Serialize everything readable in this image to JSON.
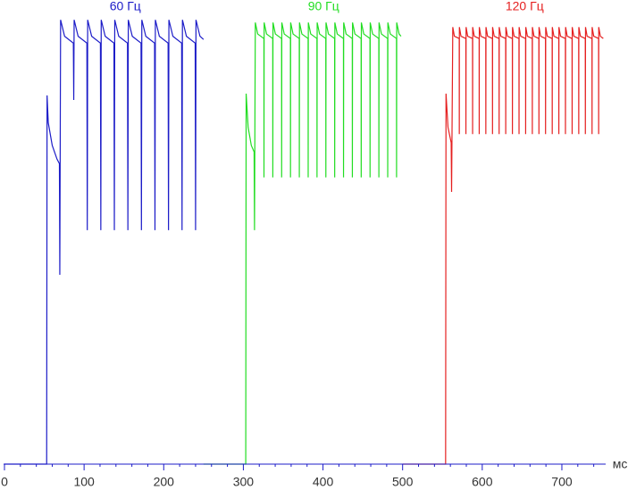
{
  "chart_data": {
    "type": "line",
    "xlabel": "мс",
    "xlim": [
      0,
      755
    ],
    "ylim": [
      0,
      100
    ],
    "xticks": [
      0,
      100,
      200,
      300,
      400,
      500,
      600,
      700
    ],
    "xticks_minor": [
      20,
      40,
      60,
      80,
      120,
      140,
      160,
      180,
      220,
      240,
      260,
      280,
      320,
      340,
      360,
      380,
      420,
      440,
      460,
      480,
      520,
      540,
      560,
      580,
      620,
      640,
      660,
      680,
      720,
      740
    ],
    "series": [
      {
        "name": "60 Гц",
        "color": "#1c1cc8",
        "x": [
          0,
          53,
          53.5,
          55,
          60,
          66,
          69,
          69.5,
          70.5,
          75.5,
          86.5,
          87,
          87.5,
          92.5,
          103.5,
          104,
          104.5,
          109.5,
          120.5,
          121,
          121.5,
          126.5,
          137.5,
          138,
          138.5,
          143.5,
          154.5,
          155,
          155.5,
          160.5,
          171.5,
          172,
          172.5,
          177.5,
          188.5,
          189,
          189.5,
          194.5,
          205.5,
          206,
          206.5,
          211.5,
          222.5,
          223,
          223.5,
          228.5,
          239.5,
          240,
          240.5,
          245.5,
          250
        ],
        "values": [
          0,
          0,
          81,
          75,
          70,
          67,
          66,
          41.6,
          97.6,
          94,
          92.5,
          80,
          97.6,
          94,
          92.5,
          51.4,
          97.6,
          94,
          92.5,
          51.4,
          97.6,
          94,
          92.5,
          51.4,
          97.6,
          94,
          92.5,
          51.4,
          97.6,
          94,
          92.5,
          51.4,
          97.6,
          94,
          92.5,
          51.4,
          97.6,
          94,
          92.5,
          51.4,
          97.6,
          94,
          92.5,
          51.4,
          97.6,
          94,
          92.5,
          51.4,
          97.6,
          94,
          93.3
        ]
      },
      {
        "name": "90 Гц",
        "color": "#22dd22",
        "x": [
          250,
          303,
          303.5,
          306,
          310,
          313.5,
          314,
          315,
          318,
          325.8,
          325.9,
          326.1,
          329.1,
          336.9,
          337,
          337.2,
          340.2,
          348,
          348.1,
          348.3,
          351.3,
          359.1,
          359.2,
          359.4,
          362.4,
          370.2,
          370.3,
          370.5,
          373.5,
          381.3,
          381.4,
          381.6,
          384.6,
          392.4,
          392.5,
          392.7,
          395.7,
          403.5,
          403.6,
          403.8,
          406.8,
          414.6,
          414.7,
          414.9,
          417.9,
          425.7,
          425.8,
          426,
          429,
          436.8,
          436.9,
          437.1,
          440.1,
          447.9,
          448,
          448.2,
          451.2,
          459,
          459.1,
          459.3,
          462.3,
          470.1,
          470.2,
          470.4,
          473.4,
          481.2,
          481.3,
          481.5,
          484.5,
          492.3,
          492.4,
          492.6,
          495.6,
          498
        ],
        "values": [
          0,
          0,
          81.4,
          74,
          70,
          68.6,
          51.4,
          97,
          94.5,
          93.5,
          63,
          97,
          94.5,
          93.5,
          63,
          97,
          94.5,
          93.5,
          63,
          97,
          94.5,
          93.5,
          63,
          97,
          94.5,
          93.5,
          63,
          97,
          94.5,
          93.5,
          63,
          97,
          94.5,
          93.5,
          63,
          97,
          94.5,
          93.5,
          63,
          97,
          94.5,
          93.5,
          63,
          97,
          94.5,
          93.5,
          63,
          97,
          94.5,
          93.5,
          63,
          97,
          94.5,
          93.5,
          63,
          97,
          94.5,
          93.5,
          63,
          97,
          94.5,
          93.5,
          63,
          97,
          94.5,
          93.5,
          63,
          97,
          94.5,
          93.5,
          63,
          97,
          94.5,
          94
        ]
      },
      {
        "name": "120 Гц",
        "color": "#e52020",
        "x": [
          500,
          554,
          554.5,
          557,
          561,
          561.5,
          563,
          565,
          571.1,
          571.2,
          571.3,
          573.3,
          579.4,
          579.5,
          579.7,
          581.7,
          587.8,
          587.9,
          588,
          590,
          596.1,
          596.2,
          596.3,
          598.3,
          604.4,
          604.5,
          604.7,
          606.7,
          612.8,
          612.9,
          613,
          615,
          621.1,
          621.2,
          621.3,
          623.3,
          629.4,
          629.5,
          629.7,
          631.7,
          637.8,
          637.9,
          638,
          640,
          646.1,
          646.2,
          646.3,
          648.3,
          654.4,
          654.5,
          654.7,
          656.7,
          662.8,
          662.9,
          663,
          665,
          671.1,
          671.2,
          671.3,
          673.3,
          679.4,
          679.5,
          679.7,
          681.7,
          687.8,
          687.9,
          688,
          690,
          696.1,
          696.2,
          696.3,
          698.3,
          704.4,
          704.5,
          704.7,
          706.7,
          712.8,
          712.9,
          713,
          715,
          721.1,
          721.2,
          721.3,
          723.3,
          729.4,
          729.5,
          729.7,
          731.7,
          737.8,
          737.9,
          738,
          740,
          746.1,
          746.2,
          746.3,
          748.3,
          752
        ],
        "values": [
          0,
          0,
          81.4,
          74,
          70.6,
          59.8,
          96,
          94,
          93.5,
          72.5,
          96,
          94,
          93.5,
          72.5,
          96,
          94,
          93.5,
          72.5,
          96,
          94,
          93.5,
          72.5,
          96,
          94,
          93.5,
          72.5,
          96,
          94,
          93.5,
          72.5,
          96,
          94,
          93.5,
          72.5,
          96,
          94,
          93.5,
          72.5,
          96,
          94,
          93.5,
          72.5,
          96,
          94,
          93.5,
          72.5,
          96,
          94,
          93.5,
          72.5,
          96,
          94,
          93.5,
          72.5,
          96,
          94,
          93.5,
          72.5,
          96,
          94,
          93.5,
          72.5,
          96,
          94,
          93.5,
          72.5,
          96,
          94,
          93.5,
          72.5,
          96,
          94,
          93.5,
          72.5,
          96,
          94,
          93.5,
          72.5,
          96,
          94,
          93.5,
          72.5,
          96,
          94,
          93.5,
          72.5,
          96,
          94,
          93.5,
          72.5,
          96,
          94,
          93.5,
          72.5,
          96,
          94,
          93.5
        ]
      }
    ]
  }
}
